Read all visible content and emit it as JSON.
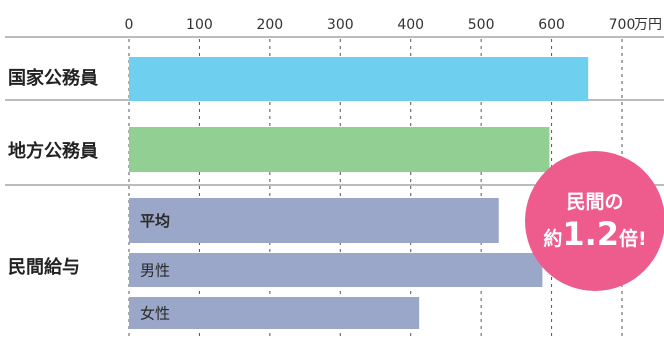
{
  "chart_data": {
    "type": "bar",
    "orientation": "horizontal",
    "unit": "万円",
    "xlim": [
      0,
      700
    ],
    "ticks": [
      0,
      100,
      200,
      300,
      400,
      500,
      600,
      700
    ],
    "tick_labels": [
      "0",
      "100",
      "200",
      "300",
      "400",
      "500",
      "600",
      "700"
    ],
    "grid": true,
    "groups": [
      {
        "label": "国家公務員",
        "bars": [
          {
            "label": "",
            "value": 652,
            "color": "#6ecfef"
          }
        ]
      },
      {
        "label": "地方公務員",
        "bars": [
          {
            "label": "",
            "value": 597,
            "color": "#92cf93"
          }
        ]
      },
      {
        "label": "民間給与",
        "bars": [
          {
            "label": "平均",
            "value": 525,
            "color": "#9aa7c8",
            "bold": true
          },
          {
            "label": "男性",
            "value": 587,
            "color": "#9aa7c8",
            "bold": false
          },
          {
            "label": "女性",
            "value": 412,
            "color": "#9aa7c8",
            "bold": false
          }
        ]
      }
    ],
    "badge": {
      "line1": "民間の",
      "prefix": "約",
      "number": "1.2",
      "suffix": "倍!",
      "color": "#ee5c8e"
    }
  }
}
